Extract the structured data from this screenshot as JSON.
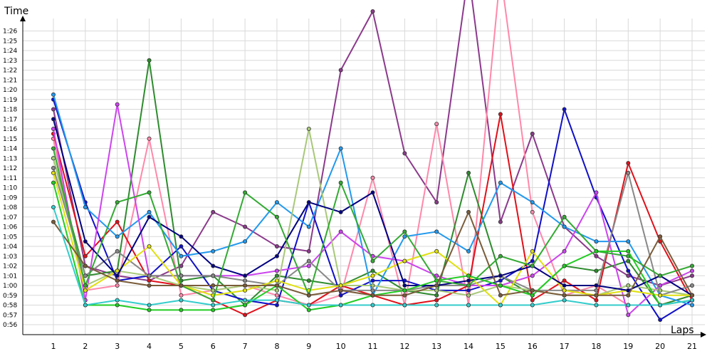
{
  "chart_data": {
    "type": "line",
    "xlabel": "Laps",
    "ylabel": "Time",
    "grid": true,
    "x": [
      1,
      2,
      3,
      4,
      5,
      6,
      7,
      8,
      9,
      10,
      11,
      12,
      13,
      14,
      15,
      16,
      17,
      18,
      19,
      20,
      21
    ],
    "y_ticks": [
      "0:56",
      "0:57",
      "0:58",
      "0:59",
      "1:00",
      "1:01",
      "1:02",
      "1:03",
      "1:04",
      "1:05",
      "1:06",
      "1:07",
      "1:08",
      "1:09",
      "1:10",
      "1:11",
      "1:12",
      "1:13",
      "1:14",
      "1:15",
      "1:16",
      "1:17",
      "1:18",
      "1:19",
      "1:20",
      "1:21",
      "1:22",
      "1:23",
      "1:24",
      "1:25",
      "1:26"
    ],
    "y_tick_values": [
      56,
      57,
      58,
      59,
      60,
      61,
      62,
      63,
      64,
      65,
      66,
      67,
      68,
      69,
      70,
      71,
      72,
      73,
      74,
      75,
      76,
      77,
      78,
      79,
      80,
      81,
      82,
      83,
      84,
      85,
      86
    ],
    "y_unit": "seconds",
    "ylim": [
      55,
      87.5
    ],
    "series": [
      {
        "color": "#8B3A8B",
        "values": [
          78,
          62,
          61,
          60.5,
          62,
          67.5,
          66,
          64,
          63.5,
          82,
          88,
          73.5,
          68.5,
          92,
          66.5,
          75.5,
          66,
          63,
          61,
          60,
          61
        ]
      },
      {
        "color": "#FF88AA",
        "values": [
          75,
          59.5,
          60,
          75,
          59,
          59.5,
          60,
          59,
          58,
          59,
          71,
          58,
          76.5,
          58,
          92,
          67.5,
          59,
          60,
          58,
          58,
          59
        ]
      },
      {
        "color": "#2E8B2E",
        "values": [
          73,
          61,
          61.5,
          83,
          60.5,
          61,
          58,
          61,
          60.5,
          60,
          61.5,
          59.5,
          59,
          71.5,
          61,
          59,
          62,
          61.5,
          62.5,
          58,
          59
        ]
      },
      {
        "color": "#E0101A",
        "values": [
          75.5,
          63,
          66.5,
          60.5,
          60,
          58.5,
          57,
          58.5,
          58,
          60,
          59,
          58,
          58.5,
          60,
          77.5,
          58.5,
          60.5,
          58.5,
          72.5,
          64.5,
          58.5
        ]
      },
      {
        "color": "#1010C8",
        "values": [
          79,
          68.5,
          60.5,
          61,
          64,
          59.5,
          58.5,
          58,
          68.5,
          59,
          60.5,
          60.5,
          59.5,
          59.5,
          60.5,
          62.5,
          78,
          69,
          61.5,
          56.5,
          58.5
        ]
      },
      {
        "color": "#2299EE",
        "values": [
          79.5,
          68,
          65,
          67.5,
          63,
          63.5,
          64.5,
          68.5,
          66,
          74,
          59,
          65,
          65.5,
          63.5,
          70.5,
          68.5,
          66,
          64.5,
          64.5,
          59,
          58
        ]
      },
      {
        "color": "#CC44EE",
        "values": [
          76,
          58.5,
          78.5,
          61,
          61,
          61,
          61,
          61.5,
          62,
          65.5,
          63,
          62.5,
          61,
          60,
          60,
          61,
          63.5,
          69.5,
          57,
          60,
          61.5
        ]
      },
      {
        "color": "#A8C878",
        "values": [
          73,
          60,
          61.5,
          61,
          60,
          59.5,
          60,
          59.5,
          76,
          60,
          60,
          59.5,
          59.5,
          59,
          60,
          59.5,
          59,
          59,
          60,
          59.5,
          59
        ]
      },
      {
        "color": "#888888",
        "values": [
          72,
          61,
          63.5,
          61,
          61,
          61,
          60.5,
          60,
          62.5,
          59.5,
          59.5,
          59.5,
          60,
          60,
          61,
          59.5,
          59.5,
          59.5,
          71.5,
          59,
          60
        ]
      },
      {
        "color": "#E0E010",
        "values": [
          71.5,
          59.5,
          61.5,
          64,
          60,
          59,
          59.5,
          60.5,
          59.5,
          60,
          61,
          62.5,
          63.5,
          61,
          58,
          63.5,
          59.5,
          59,
          59.5,
          59,
          59
        ]
      },
      {
        "color": "#000080",
        "values": [
          77,
          64.5,
          61,
          67,
          65,
          62,
          61,
          63,
          68.5,
          67.5,
          69.5,
          60,
          60,
          60.5,
          61,
          62,
          60,
          60,
          59.5,
          61,
          59
        ]
      },
      {
        "color": "#33AA33",
        "values": [
          74,
          60,
          68.5,
          69.5,
          60,
          58.5,
          69.5,
          67,
          59,
          70.5,
          62.5,
          65.5,
          60.5,
          60,
          63,
          62,
          67,
          63.5,
          63,
          61,
          62
        ]
      },
      {
        "color": "#22CC22",
        "values": [
          70.5,
          58,
          58,
          57.5,
          57.5,
          57.5,
          58,
          60,
          57.5,
          58,
          59,
          59.5,
          60.5,
          61,
          60,
          59,
          62,
          63.5,
          63.5,
          58,
          58.5
        ]
      },
      {
        "color": "#7A5C3A",
        "values": [
          66.5,
          62,
          60.5,
          60,
          60,
          60,
          60,
          60,
          59,
          59.5,
          59,
          59,
          60,
          67.5,
          59,
          59.5,
          59,
          59,
          59,
          65,
          59
        ]
      },
      {
        "color": "#33CCCC",
        "values": [
          68,
          58,
          58.5,
          58,
          58.5,
          58,
          58.5,
          58.5,
          58,
          58,
          58,
          58,
          58,
          58,
          58,
          58,
          58.5,
          58,
          58,
          58,
          58.5
        ]
      }
    ]
  }
}
